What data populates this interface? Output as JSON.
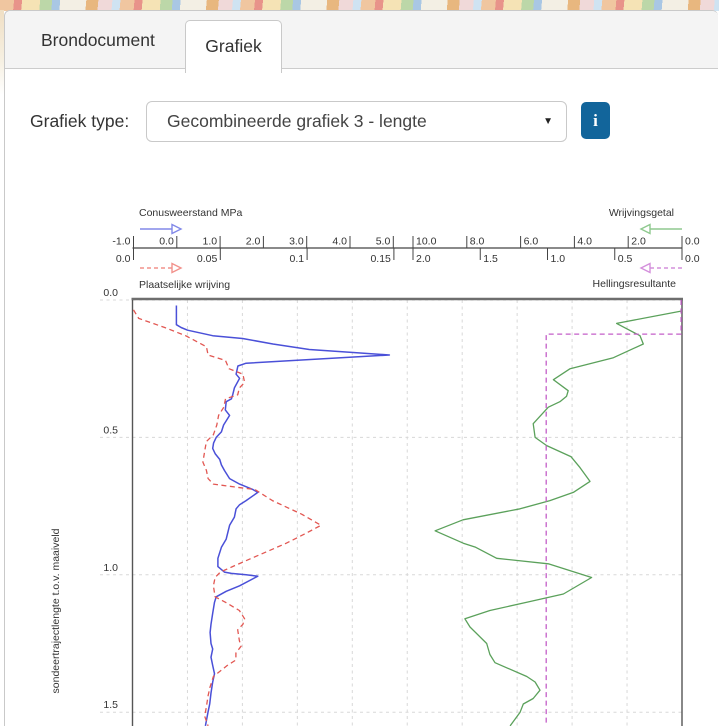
{
  "tabs": [
    {
      "label": "Brondocument",
      "active": false
    },
    {
      "label": "Grafiek",
      "active": true
    }
  ],
  "controls": {
    "graph_type_label": "Grafiek type:",
    "graph_type_value": "Gecombineerde grafiek 3 - lengte",
    "dropdown_caret": "▼",
    "info_button_label": "i",
    "info_button_color": "#12659b"
  },
  "chart_data": {
    "type": "line",
    "orientation": "depth-profile",
    "grid": true,
    "depth_axis": {
      "label": "sondeertrajectlengte t.o.v. maaiveld",
      "ticks": [
        "0.0",
        "0.5",
        "1.0",
        "1.5"
      ],
      "range_m": [
        0.0,
        1.55
      ]
    },
    "scales": [
      {
        "id": "conus",
        "label": "Conusweerstand MPa",
        "half": "left",
        "row": "top",
        "direction": "right",
        "dashed": false,
        "color": "#4a50d8",
        "arrow_color": "#8289e8",
        "ticks": [
          {
            "v": -1.0,
            "label": "-1.0"
          },
          {
            "v": 0.0,
            "label": "0.0"
          },
          {
            "v": 1.0,
            "label": "1.0"
          },
          {
            "v": 2.0,
            "label": "2.0"
          },
          {
            "v": 3.0,
            "label": "3.0"
          },
          {
            "v": 4.0,
            "label": "4.0"
          },
          {
            "v": 5.0,
            "label": "5.0"
          }
        ]
      },
      {
        "id": "wrijvingsgetal",
        "label": "Wrijvingsgetal",
        "half": "right",
        "row": "top",
        "direction": "left",
        "dashed": false,
        "color": "#5ba15b",
        "arrow_color": "#8fc98f",
        "ticks": [
          {
            "v": 10.0,
            "label": "10.0"
          },
          {
            "v": 8.0,
            "label": "8.0"
          },
          {
            "v": 6.0,
            "label": "6.0"
          },
          {
            "v": 4.0,
            "label": "4.0"
          },
          {
            "v": 2.0,
            "label": "2.0"
          },
          {
            "v": 0.0,
            "label": "0.0"
          }
        ]
      },
      {
        "id": "plaatselijke_wrijving",
        "label": "Plaatselijke wrijving",
        "half": "left",
        "row": "bottom",
        "direction": "right",
        "dashed": true,
        "color": "#e25752",
        "arrow_color": "#f2928c",
        "ticks": [
          {
            "v": 0.0,
            "label": "0.0"
          },
          {
            "v": 0.05,
            "label": "0.05"
          },
          {
            "v": 0.1,
            "label": "0.1"
          },
          {
            "v": 0.15,
            "label": "0.15"
          }
        ]
      },
      {
        "id": "hellingsresultante",
        "label": "Hellingsresultante",
        "half": "right",
        "row": "bottom",
        "direction": "left",
        "dashed": true,
        "color": "#c45fc8",
        "arrow_color": "#d490dc",
        "ticks": [
          {
            "v": 2.0,
            "label": "2.0"
          },
          {
            "v": 1.5,
            "label": "1.5"
          },
          {
            "v": 1.0,
            "label": "1.0"
          },
          {
            "v": 0.5,
            "label": "0.5"
          },
          {
            "v": 0.0,
            "label": "0.0"
          }
        ]
      }
    ],
    "series": [
      {
        "name": "conusweerstand",
        "scale": "conus",
        "dashed": false,
        "width": 1.5,
        "color": "#4a50d8",
        "points": [
          [
            0.02,
            -0.01
          ],
          [
            0.09,
            -0.01
          ],
          [
            0.1,
            0.1
          ],
          [
            0.11,
            0.25
          ],
          [
            0.13,
            0.83
          ],
          [
            0.14,
            1.52
          ],
          [
            0.16,
            2.22
          ],
          [
            0.18,
            3.06
          ],
          [
            0.19,
            3.99
          ],
          [
            0.2,
            4.91
          ],
          [
            0.23,
            1.6
          ],
          [
            0.24,
            1.41
          ],
          [
            0.27,
            1.37
          ],
          [
            0.285,
            1.45
          ],
          [
            0.32,
            1.33
          ],
          [
            0.345,
            1.29
          ],
          [
            0.36,
            1.26
          ],
          [
            0.37,
            1.14
          ],
          [
            0.4,
            1.12
          ],
          [
            0.42,
            1.22
          ],
          [
            0.455,
            1.08
          ],
          [
            0.48,
            1.03
          ],
          [
            0.5,
            0.91
          ],
          [
            0.52,
            0.85
          ],
          [
            0.54,
            0.83
          ],
          [
            0.56,
            0.89
          ],
          [
            0.58,
            0.99
          ],
          [
            0.6,
            1.03
          ],
          [
            0.62,
            1.1
          ],
          [
            0.65,
            1.22
          ],
          [
            0.67,
            1.45
          ],
          [
            0.69,
            1.76
          ],
          [
            0.7,
            1.87
          ],
          [
            0.73,
            1.6
          ],
          [
            0.745,
            1.45
          ],
          [
            0.76,
            1.37
          ],
          [
            0.79,
            1.33
          ],
          [
            0.82,
            1.22
          ],
          [
            0.87,
            1.14
          ],
          [
            0.9,
            1.03
          ],
          [
            0.94,
            0.95
          ],
          [
            0.97,
            0.95
          ],
          [
            0.99,
            1.1
          ],
          [
            0.995,
            1.26
          ],
          [
            1.0,
            1.6
          ],
          [
            1.005,
            1.87
          ],
          [
            1.04,
            1.45
          ],
          [
            1.06,
            1.14
          ],
          [
            1.08,
            0.91
          ],
          [
            1.1,
            0.87
          ],
          [
            1.14,
            0.83
          ],
          [
            1.18,
            0.79
          ],
          [
            1.21,
            0.77
          ],
          [
            1.25,
            0.79
          ],
          [
            1.27,
            0.83
          ],
          [
            1.3,
            0.79
          ],
          [
            1.33,
            0.83
          ],
          [
            1.36,
            0.87
          ],
          [
            1.39,
            0.83
          ],
          [
            1.43,
            0.79
          ],
          [
            1.47,
            0.76
          ],
          [
            1.5,
            0.72
          ],
          [
            1.55,
            0.66
          ]
        ]
      },
      {
        "name": "plaatselijke-wrijving",
        "scale": "plaatselijke_wrijving",
        "dashed": true,
        "width": 1.3,
        "color": "#e25752",
        "points": [
          [
            0.036,
            0.0
          ],
          [
            0.067,
            0.003
          ],
          [
            0.1,
            0.018
          ],
          [
            0.13,
            0.03
          ],
          [
            0.17,
            0.042
          ],
          [
            0.2,
            0.043
          ],
          [
            0.22,
            0.053
          ],
          [
            0.25,
            0.055
          ],
          [
            0.27,
            0.063
          ],
          [
            0.3,
            0.064
          ],
          [
            0.32,
            0.061
          ],
          [
            0.345,
            0.06
          ],
          [
            0.36,
            0.053
          ],
          [
            0.39,
            0.052
          ],
          [
            0.42,
            0.049
          ],
          [
            0.455,
            0.048
          ],
          [
            0.49,
            0.046
          ],
          [
            0.515,
            0.042
          ],
          [
            0.55,
            0.041
          ],
          [
            0.59,
            0.04
          ],
          [
            0.62,
            0.042
          ],
          [
            0.65,
            0.043
          ],
          [
            0.67,
            0.046
          ],
          [
            0.68,
            0.058
          ],
          [
            0.69,
            0.07
          ],
          [
            0.73,
            0.08
          ],
          [
            0.78,
            0.097
          ],
          [
            0.82,
            0.108
          ],
          [
            0.85,
            0.099
          ],
          [
            0.885,
            0.088
          ],
          [
            0.94,
            0.068
          ],
          [
            0.97,
            0.057
          ],
          [
            0.99,
            0.05
          ],
          [
            1.01,
            0.047
          ],
          [
            1.04,
            0.046
          ],
          [
            1.08,
            0.047
          ],
          [
            1.1,
            0.053
          ],
          [
            1.13,
            0.061
          ],
          [
            1.16,
            0.064
          ],
          [
            1.18,
            0.063
          ],
          [
            1.2,
            0.06
          ],
          [
            1.24,
            0.061
          ],
          [
            1.26,
            0.062
          ],
          [
            1.285,
            0.059
          ],
          [
            1.31,
            0.059
          ],
          [
            1.33,
            0.054
          ],
          [
            1.35,
            0.05
          ],
          [
            1.37,
            0.046
          ],
          [
            1.41,
            0.044
          ],
          [
            1.44,
            0.043
          ],
          [
            1.48,
            0.042
          ],
          [
            1.515,
            0.041
          ],
          [
            1.55,
            0.043
          ]
        ]
      },
      {
        "name": "wrijvingsgetal",
        "scale": "wrijvingsgetal",
        "dashed": false,
        "width": 1.3,
        "color": "#5ba15b",
        "points": [
          [
            0.04,
            0.01
          ],
          [
            0.085,
            2.43
          ],
          [
            0.13,
            1.56
          ],
          [
            0.16,
            1.44
          ],
          [
            0.21,
            2.55
          ],
          [
            0.25,
            4.16
          ],
          [
            0.29,
            4.78
          ],
          [
            0.33,
            4.23
          ],
          [
            0.35,
            4.29
          ],
          [
            0.37,
            4.54
          ],
          [
            0.39,
            4.97
          ],
          [
            0.45,
            5.53
          ],
          [
            0.5,
            5.46
          ],
          [
            0.53,
            5.03
          ],
          [
            0.57,
            4.13
          ],
          [
            0.61,
            3.79
          ],
          [
            0.66,
            3.42
          ],
          [
            0.7,
            4.04
          ],
          [
            0.73,
            4.91
          ],
          [
            0.76,
            6.02
          ],
          [
            0.8,
            8.14
          ],
          [
            0.84,
            9.18
          ],
          [
            0.885,
            8.13
          ],
          [
            0.9,
            7.67
          ],
          [
            0.94,
            6.89
          ],
          [
            0.96,
            4.97
          ],
          [
            1.01,
            3.36
          ],
          [
            1.07,
            4.41
          ],
          [
            1.1,
            5.77
          ],
          [
            1.13,
            7.14
          ],
          [
            1.16,
            8.07
          ],
          [
            1.19,
            7.88
          ],
          [
            1.25,
            7.26
          ],
          [
            1.29,
            7.14
          ],
          [
            1.32,
            6.95
          ],
          [
            1.37,
            5.77
          ],
          [
            1.39,
            5.46
          ],
          [
            1.42,
            5.28
          ],
          [
            1.45,
            5.53
          ],
          [
            1.47,
            5.9
          ],
          [
            1.5,
            6.02
          ],
          [
            1.55,
            6.39
          ]
        ]
      },
      {
        "name": "hellingsresultante",
        "scale": "hellingsresultante",
        "dashed": true,
        "width": 1.3,
        "color": "#c45fc8",
        "points": [
          [
            0.0,
            0.007
          ],
          [
            0.124,
            0.007
          ],
          [
            0.124,
            1.01
          ],
          [
            1.55,
            1.01
          ]
        ]
      }
    ]
  }
}
